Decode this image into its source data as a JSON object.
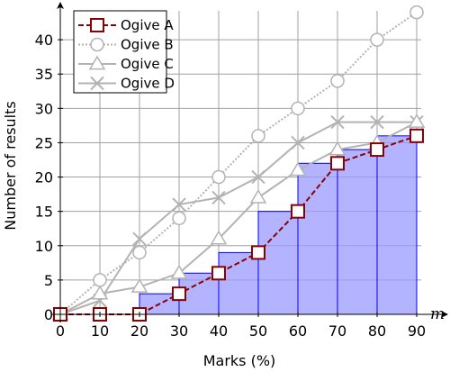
{
  "chart_data": {
    "type": "line",
    "xlabel": "Marks (%)",
    "ylabel": "Number of results",
    "axis_variable": "m",
    "x_ticks": [
      0,
      10,
      20,
      30,
      40,
      50,
      60,
      70,
      80,
      90
    ],
    "y_ticks": [
      0,
      5,
      10,
      15,
      20,
      25,
      30,
      35,
      40
    ],
    "xlim": [
      0,
      95
    ],
    "ylim": [
      0,
      45
    ],
    "grid": true,
    "legend_position": "top-left",
    "series": [
      {
        "name": "Ogive A",
        "style": "dashed",
        "marker": "square",
        "color": "#8b0000",
        "x": [
          0,
          10,
          20,
          30,
          40,
          50,
          60,
          70,
          80,
          90
        ],
        "y": [
          0,
          0,
          0,
          3,
          6,
          9,
          15,
          22,
          24,
          26
        ]
      },
      {
        "name": "Ogive B",
        "style": "dotted",
        "marker": "circle",
        "color": "#b3b3b3",
        "x": [
          0,
          10,
          20,
          30,
          40,
          50,
          60,
          70,
          80,
          90
        ],
        "y": [
          0,
          5,
          9,
          14,
          20,
          26,
          30,
          34,
          40,
          44
        ]
      },
      {
        "name": "Ogive C",
        "style": "solid",
        "marker": "triangle",
        "color": "#b3b3b3",
        "x": [
          0,
          10,
          20,
          30,
          40,
          50,
          60,
          70,
          80,
          90
        ],
        "y": [
          0,
          3,
          4,
          6,
          11,
          17,
          21,
          24,
          25,
          28
        ]
      },
      {
        "name": "Ogive D",
        "style": "solid",
        "marker": "x",
        "color": "#b3b3b3",
        "x": [
          0,
          10,
          20,
          30,
          40,
          50,
          60,
          70,
          80,
          90
        ],
        "y": [
          0,
          2,
          11,
          16,
          17,
          20,
          25,
          28,
          28,
          28
        ]
      }
    ],
    "histogram": {
      "fill": "#9999ff",
      "stroke": "#0000ff",
      "bins": [
        {
          "from": 20,
          "to": 30,
          "value": 3
        },
        {
          "from": 30,
          "to": 40,
          "value": 6
        },
        {
          "from": 40,
          "to": 50,
          "value": 9
        },
        {
          "from": 50,
          "to": 60,
          "value": 15
        },
        {
          "from": 60,
          "to": 70,
          "value": 22
        },
        {
          "from": 70,
          "to": 80,
          "value": 24
        },
        {
          "from": 80,
          "to": 90,
          "value": 26
        }
      ]
    }
  }
}
